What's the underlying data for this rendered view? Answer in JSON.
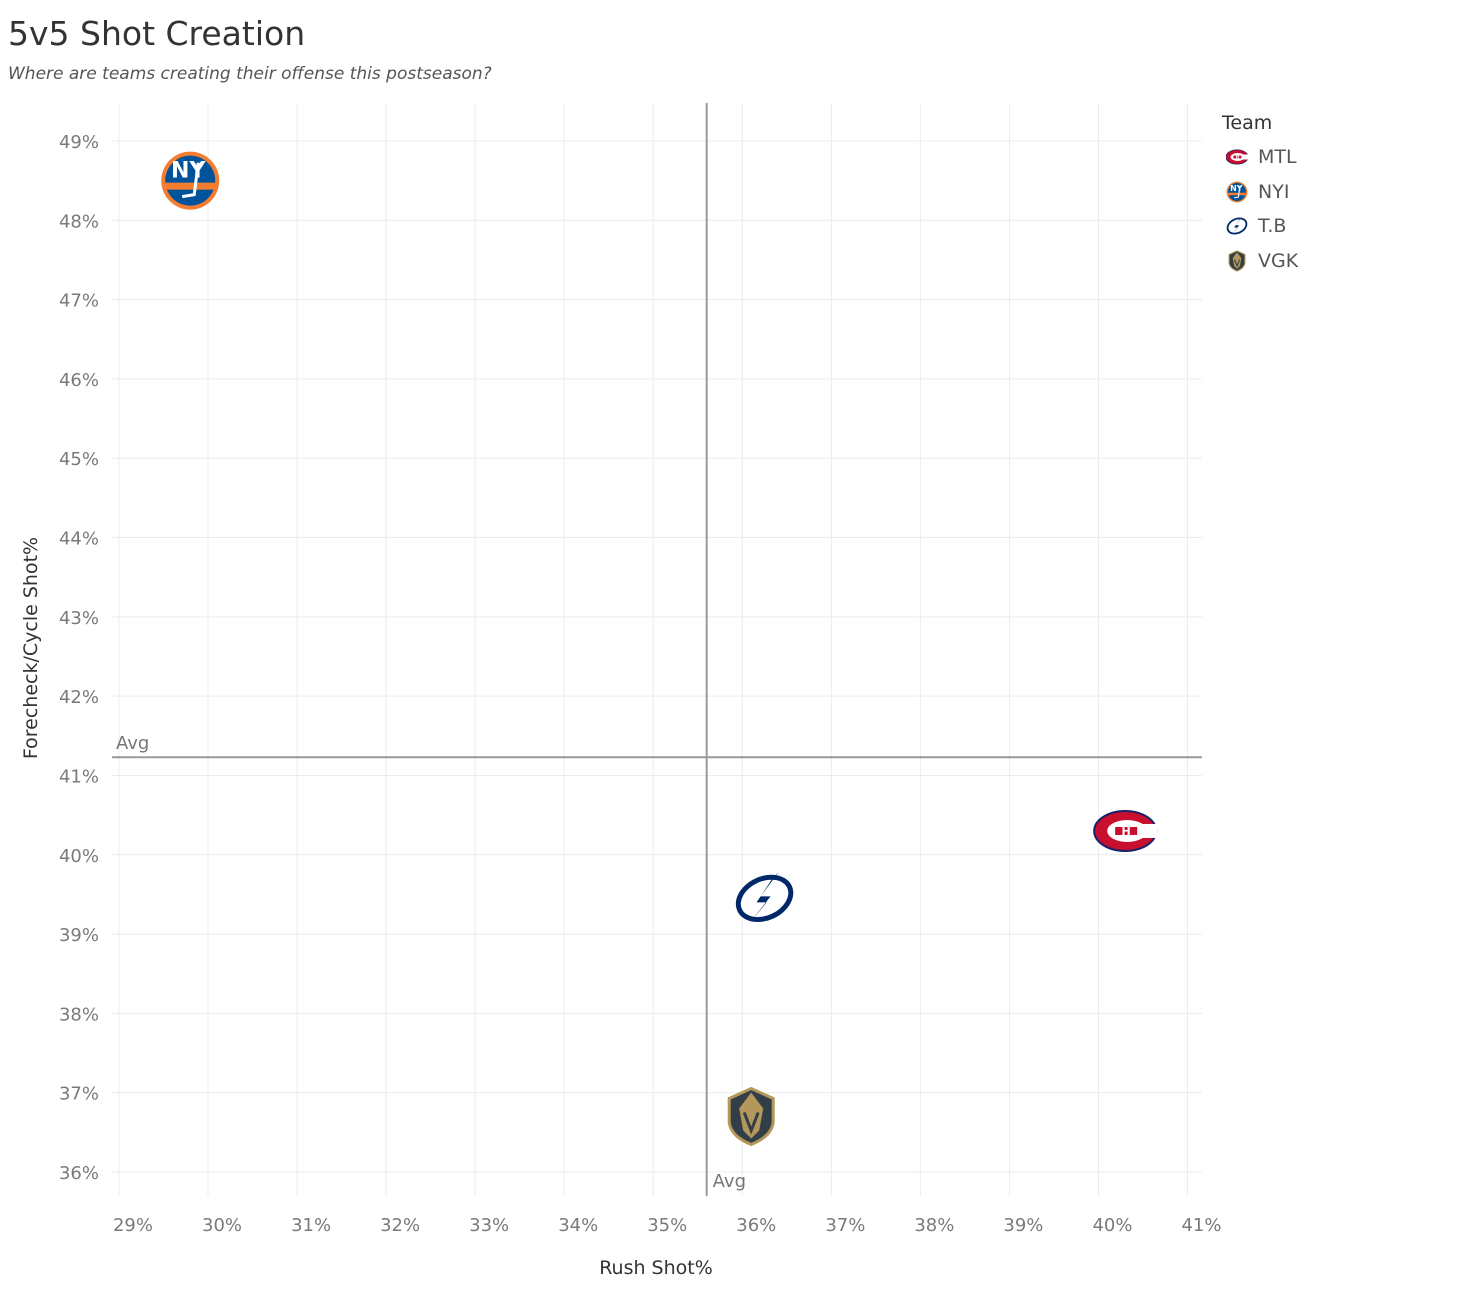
{
  "title": "5v5 Shot Creation",
  "subtitle": "Where are teams creating their offense this postseason?",
  "legend": {
    "title": "Team",
    "items": [
      {
        "label": "MTL",
        "icon": "mtl-logo-icon",
        "color": "#C8102E"
      },
      {
        "label": "NYI",
        "icon": "nyi-logo-icon",
        "color": "#F47D30"
      },
      {
        "label": "T.B",
        "icon": "tb-logo-icon",
        "color": "#002868"
      },
      {
        "label": "VGK",
        "icon": "vgk-logo-icon",
        "color": "#B4975A"
      }
    ]
  },
  "chart_data": {
    "type": "scatter",
    "title": "5v5 Shot Creation",
    "xlabel": "Rush Shot%",
    "ylabel": "Forecheck/Cycle Shot%",
    "xlim": [
      28.9,
      41.2
    ],
    "ylim": [
      35.7,
      49.5
    ],
    "x_ticks": [
      29,
      30,
      31,
      32,
      33,
      34,
      35,
      36,
      37,
      38,
      39,
      40,
      41
    ],
    "y_ticks": [
      36,
      37,
      38,
      39,
      40,
      41,
      42,
      43,
      44,
      45,
      46,
      47,
      48,
      49
    ],
    "tick_format": "%",
    "points": [
      {
        "team": "NYI",
        "x": 29.8,
        "y": 48.5
      },
      {
        "team": "MTL",
        "x": 40.3,
        "y": 40.3
      },
      {
        "team": "T.B",
        "x": 36.25,
        "y": 39.45
      },
      {
        "team": "VGK",
        "x": 36.1,
        "y": 36.7
      }
    ],
    "reference_lines": [
      {
        "axis": "x",
        "label": "Avg",
        "value": 35.6
      },
      {
        "axis": "y",
        "label": "Avg",
        "value": 41.23
      }
    ],
    "grid": true,
    "legend_position": "right"
  }
}
